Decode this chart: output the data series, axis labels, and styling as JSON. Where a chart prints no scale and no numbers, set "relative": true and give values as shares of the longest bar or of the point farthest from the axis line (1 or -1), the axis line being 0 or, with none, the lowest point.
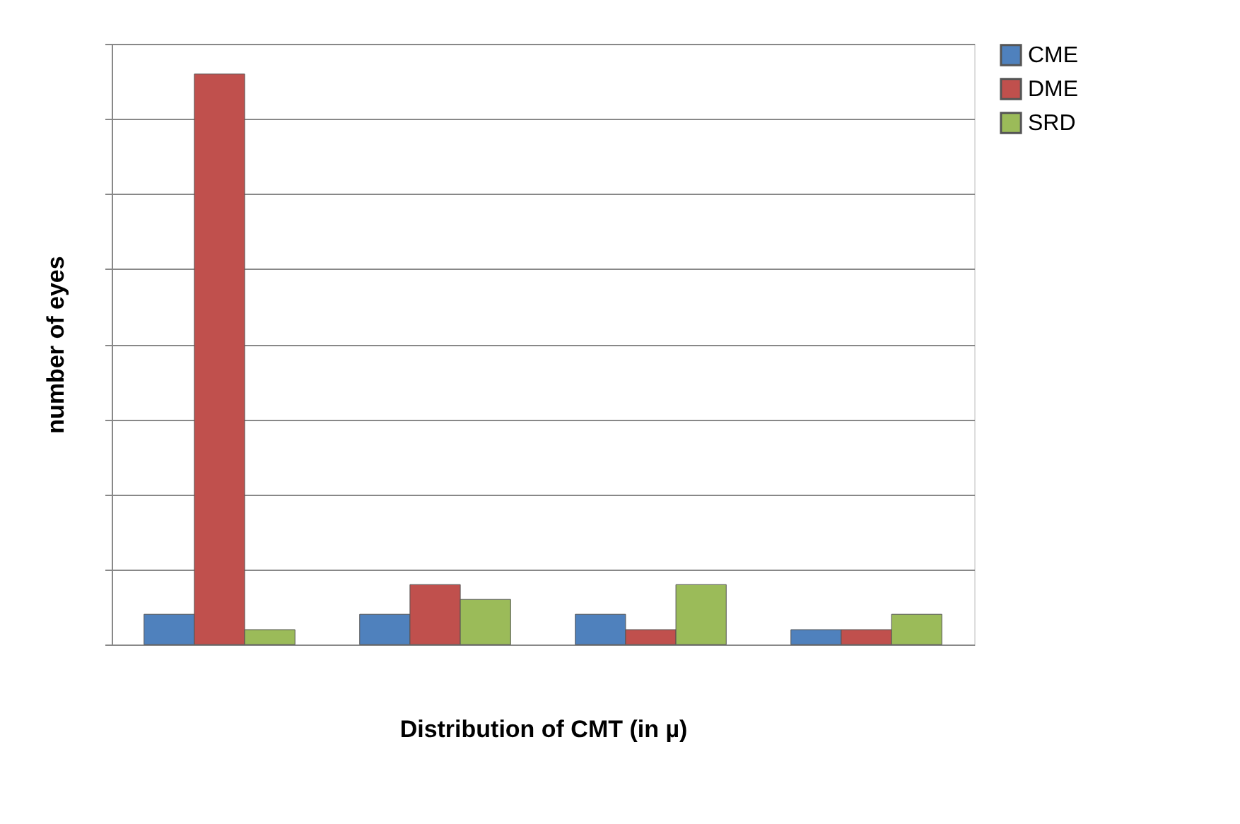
{
  "chart_data": {
    "type": "bar",
    "relative": true,
    "xlabel": "Distribution of CMT (in µ)",
    "ylabel": "number of eyes",
    "categories": [
      null,
      null,
      null,
      null
    ],
    "series": [
      {
        "name": "CME",
        "color": "#4f81bd",
        "values": [
          0.053,
          0.053,
          0.053,
          0.026
        ]
      },
      {
        "name": "DME",
        "color": "#c0504d",
        "values": [
          1,
          0.105,
          0.026,
          0.026
        ]
      },
      {
        "name": "SRD",
        "color": "#9bbb59",
        "values": [
          0.026,
          0.079,
          0.105,
          0.053
        ]
      }
    ],
    "grid": true,
    "legend": "right"
  }
}
